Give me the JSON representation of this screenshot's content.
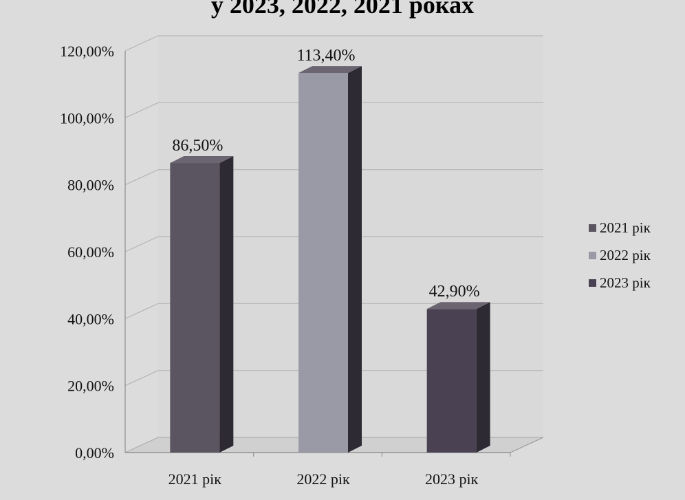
{
  "chart_data": {
    "type": "bar",
    "title": "у 2023, 2022, 2021 роках",
    "categories": [
      "2021 рік",
      "2022 рік",
      "2023 рік"
    ],
    "values": [
      86.5,
      113.4,
      42.9
    ],
    "value_labels": [
      "86,50%",
      "113,40%",
      "42,90%"
    ],
    "series": [
      {
        "name": "2021 рік",
        "color": "#5a5560"
      },
      {
        "name": "2022 рік",
        "color": "#9a9aa6"
      },
      {
        "name": "2023 рік",
        "color": "#4a4252"
      }
    ],
    "yticks": [
      {
        "value": 0,
        "label": "0,00%"
      },
      {
        "value": 20,
        "label": "20,00%"
      },
      {
        "value": 40,
        "label": "40,00%"
      },
      {
        "value": 60,
        "label": "60,00%"
      },
      {
        "value": 80,
        "label": "80,00%"
      },
      {
        "value": 100,
        "label": "100,00%"
      },
      {
        "value": 120,
        "label": "120,00%"
      }
    ],
    "ylim": [
      0,
      120
    ],
    "grid": true,
    "legend_position": "right",
    "style": "3d-bar"
  }
}
